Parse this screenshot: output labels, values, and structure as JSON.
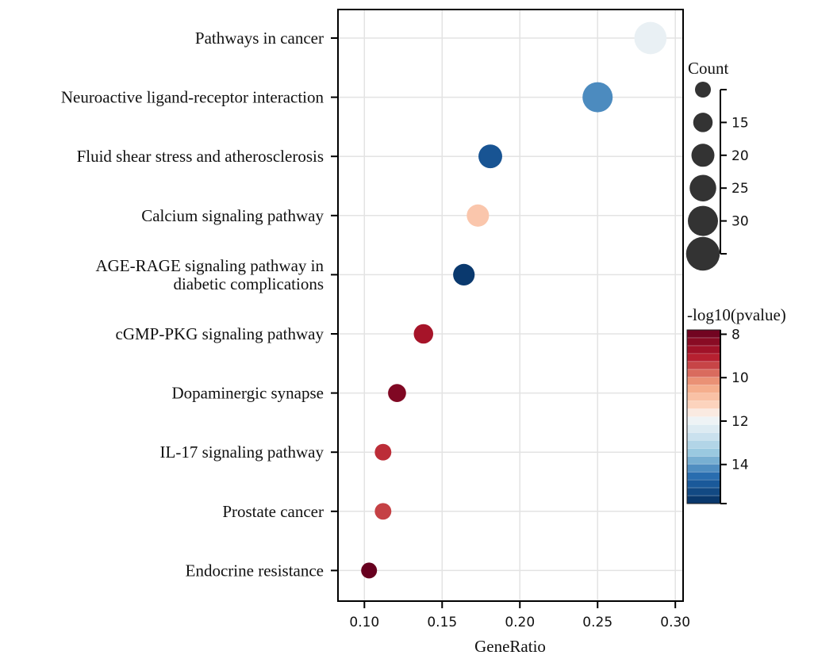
{
  "chart_data": {
    "type": "scatter",
    "xlabel": "GeneRatio",
    "xlim": [
      0.083,
      0.305
    ],
    "xticks": [
      0.1,
      0.15,
      0.2,
      0.25,
      0.3
    ],
    "xtick_labels": [
      "0.10",
      "0.15",
      "0.20",
      "0.25",
      "0.30"
    ],
    "grid": true,
    "points": [
      {
        "term": [
          "Pathways in cancer"
        ],
        "gene_ratio": 0.284,
        "count": 33,
        "neg_log10_p": 12.1
      },
      {
        "term": [
          "Neuroactive ligand-receptor interaction"
        ],
        "gene_ratio": 0.25,
        "count": 30,
        "neg_log10_p": 14.2
      },
      {
        "term": [
          "Fluid shear stress and atherosclerosis"
        ],
        "gene_ratio": 0.181,
        "count": 21,
        "neg_log10_p": 15.0
      },
      {
        "term": [
          "Calcium signaling pathway"
        ],
        "gene_ratio": 0.173,
        "count": 19,
        "neg_log10_p": 11.0
      },
      {
        "term": [
          "AGE-RAGE signaling pathway in",
          "diabetic complications"
        ],
        "gene_ratio": 0.164,
        "count": 18,
        "neg_log10_p": 15.6
      },
      {
        "term": [
          "cGMP-PKG signaling pathway"
        ],
        "gene_ratio": 0.138,
        "count": 15,
        "neg_log10_p": 8.8
      },
      {
        "term": [
          "Dopaminergic synapse"
        ],
        "gene_ratio": 0.121,
        "count": 13,
        "neg_log10_p": 8.2
      },
      {
        "term": [
          "IL-17 signaling pathway"
        ],
        "gene_ratio": 0.112,
        "count": 11,
        "neg_log10_p": 9.2
      },
      {
        "term": [
          "Prostate cancer"
        ],
        "gene_ratio": 0.112,
        "count": 11,
        "neg_log10_p": 9.4
      },
      {
        "term": [
          "Endocrine resistance"
        ],
        "gene_ratio": 0.103,
        "count": 10,
        "neg_log10_p": 7.7
      }
    ],
    "size_legend": {
      "title": "Count",
      "ticks": [
        15,
        20,
        25,
        30
      ],
      "tick_labels": [
        "15",
        "20",
        "25",
        "30"
      ],
      "circles": [
        10,
        15,
        20,
        25,
        30,
        35
      ],
      "range": [
        10,
        35
      ]
    },
    "color_legend": {
      "title": "-log10(pvalue)",
      "ticks": [
        8,
        10,
        12,
        14
      ],
      "tick_labels": [
        "8",
        "10",
        "12",
        "14"
      ],
      "range": [
        7.8,
        15.8
      ],
      "low_color": "#67001f",
      "mid_color": "#f7f7f7",
      "high_color": "#053061"
    }
  },
  "colors": {
    "grid": "#e3e3e3",
    "axis": "#000000",
    "size_legend_fill": "#333333"
  }
}
